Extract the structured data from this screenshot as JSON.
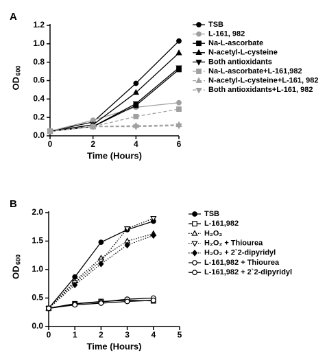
{
  "chart_data": [
    {
      "type": "line",
      "panel": "A",
      "xlabel": "Time (Hours)",
      "ylabel": "OD",
      "ylabel_sub": "600",
      "x": [
        0,
        2,
        4,
        6
      ],
      "xlim": [
        0,
        6
      ],
      "xticks": [
        0,
        2,
        4,
        6
      ],
      "ylim": [
        0,
        1.2
      ],
      "yticks": [
        {
          "value": 0,
          "label": "0.0"
        },
        0.2,
        0.4,
        0.6,
        0.8,
        {
          "value": 1,
          "label": "1.0"
        },
        1.2
      ],
      "series": [
        {
          "name": "TSB",
          "color": "#000000",
          "marker": "circle",
          "filled": true,
          "line": "solid",
          "values": [
            0.05,
            0.15,
            0.57,
            1.03
          ]
        },
        {
          "name": "L-161, 982",
          "color": "#a0a0a0",
          "marker": "circle",
          "filled": true,
          "line": "solid",
          "values": [
            0.05,
            0.17,
            0.31,
            0.36
          ]
        },
        {
          "name": "Na-L-ascorbate",
          "color": "#000000",
          "marker": "square",
          "filled": true,
          "line": "solid",
          "values": [
            0.05,
            0.1,
            0.33,
            0.72
          ]
        },
        {
          "name": "N-acetyl-L-cysteine",
          "color": "#000000",
          "marker": "triangle-up",
          "filled": true,
          "line": "solid",
          "values": [
            0.05,
            0.12,
            0.47,
            0.9
          ]
        },
        {
          "name": "Both antioxidants",
          "color": "#000000",
          "marker": "triangle-down",
          "filled": true,
          "line": "solid",
          "values": [
            0.05,
            0.1,
            0.35,
            0.74
          ]
        },
        {
          "name": "Na-L-ascorbate+L-161,982",
          "color": "#a0a0a0",
          "marker": "square",
          "filled": true,
          "line": "dashed",
          "values": [
            0.05,
            0.1,
            0.21,
            0.29
          ]
        },
        {
          "name": "N-acetyl-L-cysteine+L-161, 982",
          "color": "#a0a0a0",
          "marker": "triangle-up",
          "filled": true,
          "line": "dashed",
          "values": [
            0.05,
            0.1,
            0.11,
            0.12
          ]
        },
        {
          "name": "Both antioxidants+L-161, 982",
          "color": "#a0a0a0",
          "marker": "triangle-down",
          "filled": true,
          "line": "dashed",
          "values": [
            0.05,
            0.1,
            0.1,
            0.11
          ]
        }
      ]
    },
    {
      "type": "line",
      "panel": "B",
      "xlabel": "Time (Hours)",
      "ylabel": "OD",
      "ylabel_sub": "600",
      "x": [
        0,
        1,
        2,
        3,
        4
      ],
      "xlim": [
        0,
        5
      ],
      "xticks": [
        0,
        1,
        2,
        3,
        4,
        5
      ],
      "ylim": [
        0,
        2
      ],
      "yticks": [
        {
          "value": 0,
          "label": "0.0"
        },
        0.5,
        {
          "value": 1,
          "label": "1.0"
        },
        1.5,
        {
          "value": 2,
          "label": "2.0"
        }
      ],
      "series": [
        {
          "name": "TSB",
          "color": "#000000",
          "marker": "circle",
          "filled": true,
          "line": "solid",
          "values": [
            0.32,
            0.87,
            1.48,
            1.7,
            1.85
          ]
        },
        {
          "name": "L-161,982",
          "color": "#000000",
          "marker": "square",
          "filled": false,
          "line": "solid",
          "values": [
            0.32,
            0.4,
            0.44,
            0.46,
            0.45
          ]
        },
        {
          "name": "H₂O₂",
          "color": "#000000",
          "marker": "triangle-up",
          "filled": false,
          "line": "dotted",
          "values": [
            0.32,
            0.8,
            1.2,
            1.5,
            1.63
          ]
        },
        {
          "name": "H₂O₂ + Thiourea",
          "color": "#000000",
          "marker": "triangle-down",
          "filled": false,
          "line": "dotted",
          "values": [
            0.32,
            0.77,
            1.15,
            1.72,
            1.9
          ]
        },
        {
          "name": "H₂O₂ + 2`2-dipyridyl",
          "color": "#000000",
          "marker": "diamond",
          "filled": true,
          "line": "dotted",
          "values": [
            0.32,
            0.73,
            1.1,
            1.43,
            1.6
          ]
        },
        {
          "name": "L-161,982 + Thiourea",
          "color": "#000000",
          "marker": "circle",
          "filled": false,
          "line": "solid",
          "values": [
            0.32,
            0.4,
            0.43,
            0.48,
            0.5
          ]
        },
        {
          "name": "L-161,982 + 2`2-dipyridyl",
          "color": "#000000",
          "marker": "circle",
          "filled": false,
          "line": "solid",
          "values": [
            0.32,
            0.38,
            0.41,
            0.44,
            0.46
          ]
        }
      ]
    }
  ]
}
